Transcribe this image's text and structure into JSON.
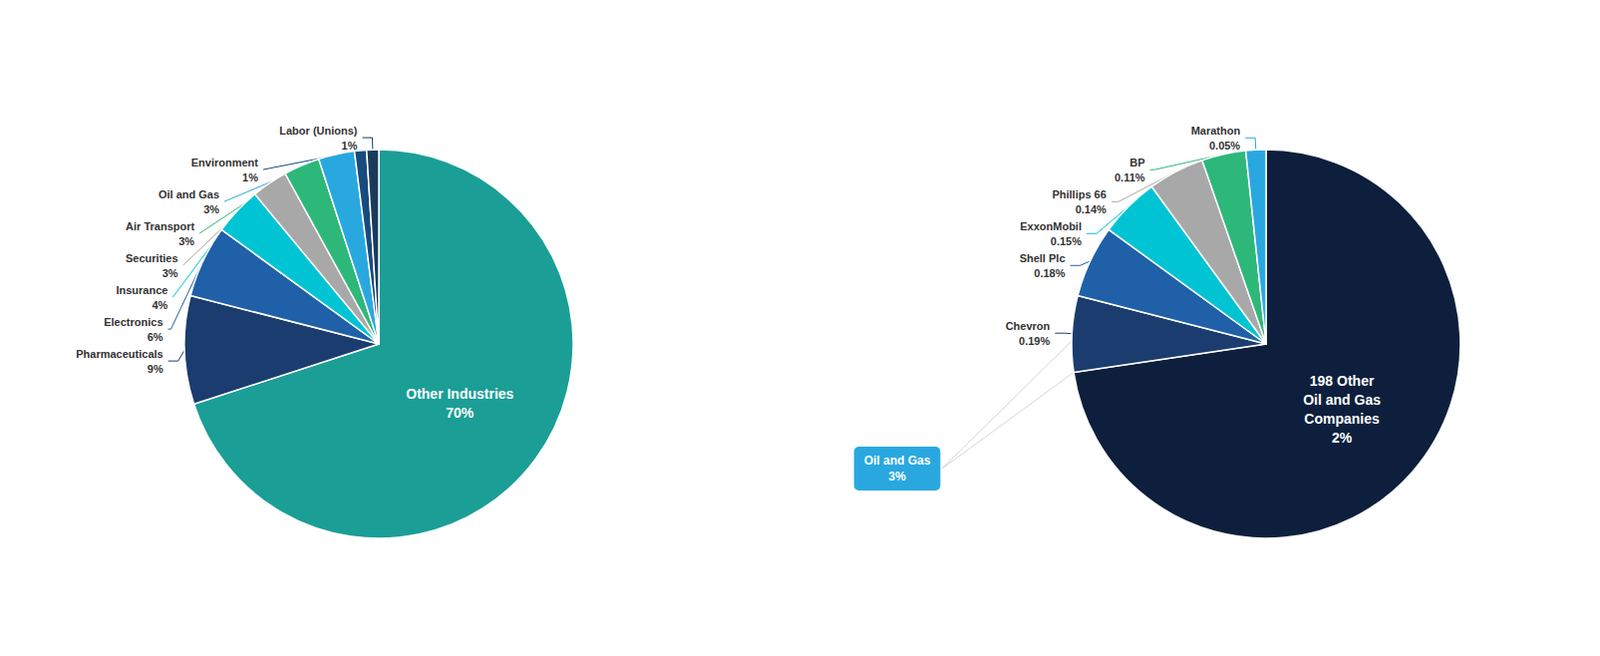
{
  "chart_data": [
    {
      "type": "pie",
      "categories": [
        "Other Industries",
        "Pharmaceuticals",
        "Electronics",
        "Insurance",
        "Securities",
        "Air Transport",
        "Oil and Gas",
        "Environment",
        "Labor (Unions)"
      ],
      "values": [
        70,
        9,
        6,
        4,
        3,
        3,
        3,
        1,
        1
      ],
      "value_labels": [
        "70%",
        "9%",
        "6%",
        "4%",
        "3%",
        "3%",
        "3%",
        "1%",
        "1%"
      ],
      "colors": [
        "#1a9e96",
        "#1b3c6e",
        "#1f60a8",
        "#00c4d4",
        "#a8a8a8",
        "#2db87a",
        "#29a8e0",
        "#174a7e",
        "#1a3a5c"
      ]
    },
    {
      "type": "pie",
      "categories": [
        "198 Other\nOil and Gas\nCompanies",
        "Chevron",
        "Shell Plc",
        "ExxonMobil",
        "Phillips 66",
        "BP",
        "Marathon"
      ],
      "values": [
        2.18,
        0.19,
        0.18,
        0.15,
        0.14,
        0.11,
        0.05
      ],
      "value_labels": [
        "2%",
        "0.19%",
        "0.18%",
        "0.15%",
        "0.14%",
        "0.11%",
        "0.05%"
      ],
      "colors": [
        "#0d1f3c",
        "#1b3c6e",
        "#1f60a8",
        "#00c4d4",
        "#a8a8a8",
        "#2db87a",
        "#29a8e0"
      ],
      "annotations": [
        {
          "text": "Oil and Gas\n3%",
          "color": "#29a8e0"
        }
      ]
    }
  ]
}
